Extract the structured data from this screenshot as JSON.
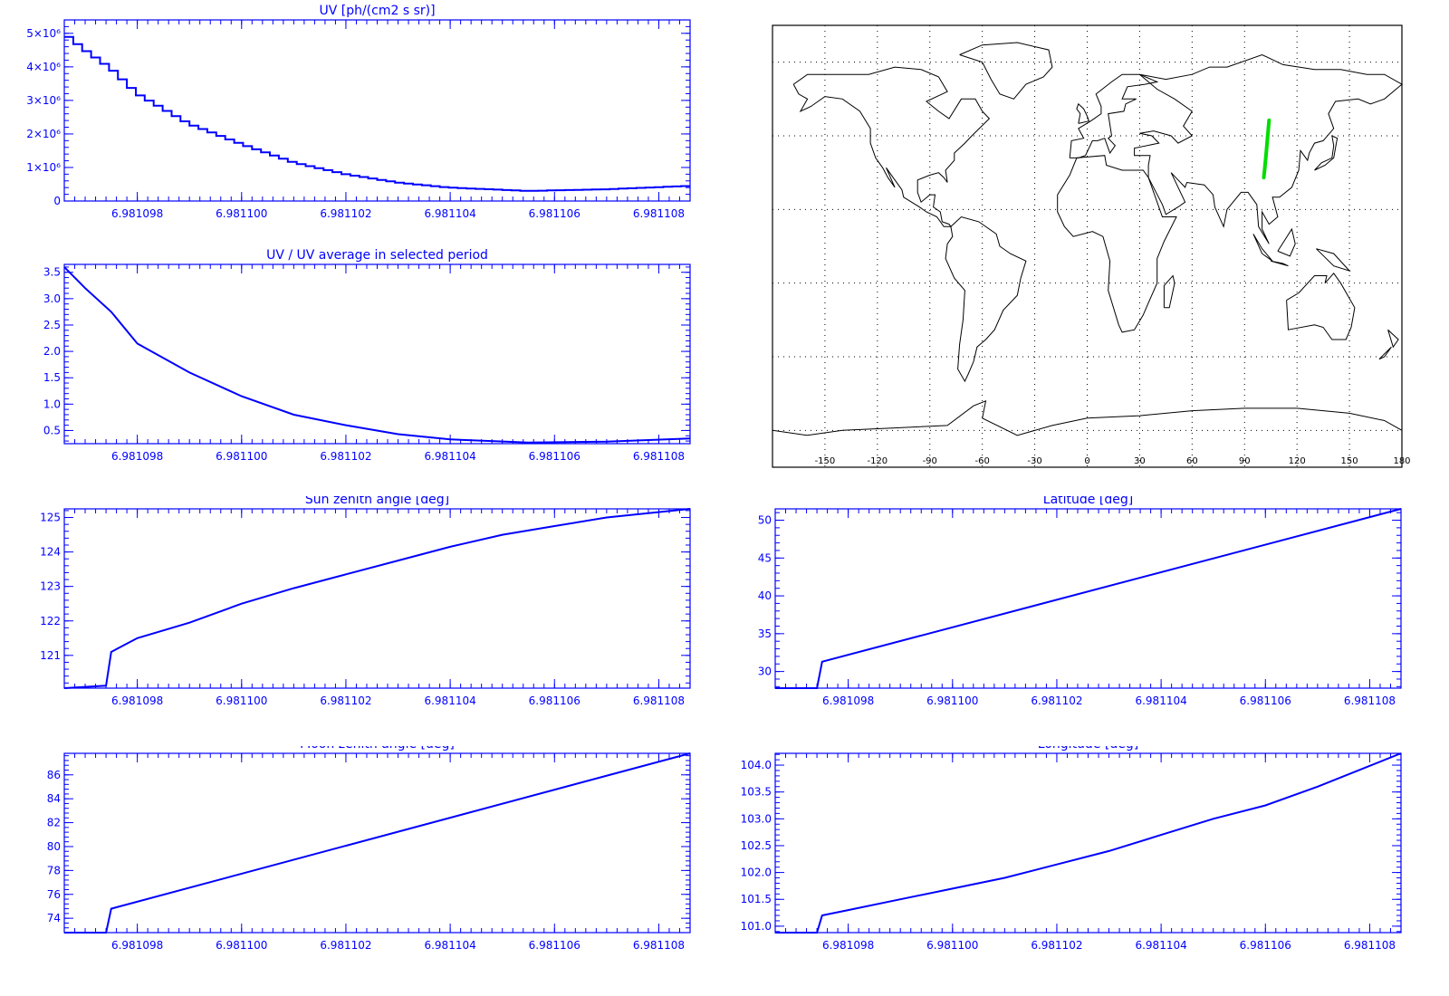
{
  "colors": {
    "axis": "#0000ff",
    "line": "#0000ff",
    "track": "#00dd00",
    "coast": "#000000",
    "grid": "#000000"
  },
  "x_tick_labels": [
    "6.981098",
    "6.981100",
    "6.981102",
    "6.981104",
    "6.981106",
    "6.981108"
  ],
  "chart_data": [
    {
      "id": "uv",
      "type": "line",
      "step": true,
      "title": "UV [ph/(cm2 s sr)]",
      "x_range": [
        6.9810966,
        6.9811086
      ],
      "x_ticks": [
        6.981098,
        6.9811,
        6.981102,
        6.981104,
        6.981106,
        6.981108
      ],
      "ylim": [
        0,
        5400000
      ],
      "y_ticks": [
        0,
        1000000,
        2000000,
        3000000,
        4000000,
        5000000
      ],
      "y_tick_labels": [
        "0",
        "1×10⁶",
        "2×10⁶",
        "3×10⁶",
        "4×10⁶",
        "5×10⁶"
      ],
      "x": [
        6.9810966,
        6.981097,
        6.9810975,
        6.981098,
        6.981099,
        6.9811,
        6.981101,
        6.981102,
        6.981103,
        6.981104,
        6.9811055,
        6.981107,
        6.9811086
      ],
      "y": [
        5000000,
        4500000,
        3950000,
        3200000,
        2300000,
        1700000,
        1150000,
        800000,
        550000,
        400000,
        300000,
        350000,
        450000
      ]
    },
    {
      "id": "ratio",
      "type": "line",
      "title": "UV / UV average in selected period",
      "x_range": [
        6.9810966,
        6.9811086
      ],
      "x_ticks": [
        6.981098,
        6.9811,
        6.981102,
        6.981104,
        6.981106,
        6.981108
      ],
      "ylim": [
        0.25,
        3.65
      ],
      "y_ticks": [
        0.5,
        1.0,
        1.5,
        2.0,
        2.5,
        3.0,
        3.5
      ],
      "y_tick_labels": [
        "0.5",
        "1.0",
        "1.5",
        "2.0",
        "2.5",
        "3.0",
        "3.5"
      ],
      "x": [
        6.9810966,
        6.981097,
        6.9810975,
        6.981098,
        6.981099,
        6.9811,
        6.981101,
        6.981102,
        6.981103,
        6.981104,
        6.9811055,
        6.981107,
        6.9811086
      ],
      "y": [
        3.6,
        3.2,
        2.75,
        2.15,
        1.6,
        1.15,
        0.8,
        0.6,
        0.43,
        0.33,
        0.27,
        0.29,
        0.35
      ]
    },
    {
      "id": "sun",
      "type": "line",
      "title": "Sun zenith angle [deg]",
      "x_range": [
        6.9810966,
        6.9811086
      ],
      "x_ticks": [
        6.981098,
        6.9811,
        6.981102,
        6.981104,
        6.981106,
        6.981108
      ],
      "ylim": [
        120.05,
        125.25
      ],
      "y_ticks": [
        121,
        122,
        123,
        124,
        125
      ],
      "y_tick_labels": [
        "121",
        "122",
        "123",
        "124",
        "125"
      ],
      "x": [
        6.9810966,
        6.9810974,
        6.9810975,
        6.981098,
        6.981099,
        6.9811,
        6.981101,
        6.981102,
        6.981103,
        6.981104,
        6.981105,
        6.981106,
        6.981107,
        6.9811086
      ],
      "y": [
        120.05,
        120.12,
        121.1,
        121.5,
        121.95,
        122.5,
        122.95,
        123.35,
        123.75,
        124.15,
        124.5,
        124.75,
        125.0,
        125.25
      ]
    },
    {
      "id": "lat",
      "type": "line",
      "title": "Latitude [deg]",
      "x_range": [
        6.9810966,
        6.9811086
      ],
      "x_ticks": [
        6.981098,
        6.9811,
        6.981102,
        6.981104,
        6.981106,
        6.981108
      ],
      "ylim": [
        27.8,
        51.5
      ],
      "y_ticks": [
        30,
        35,
        40,
        45,
        50
      ],
      "y_tick_labels": [
        "30",
        "35",
        "40",
        "45",
        "50"
      ],
      "x": [
        6.9810966,
        6.9810974,
        6.9810975,
        6.9811086
      ],
      "y": [
        27.8,
        27.8,
        31.3,
        51.5
      ]
    },
    {
      "id": "moon",
      "type": "line",
      "title": "Moon zenith angle [deg]",
      "x_range": [
        6.9810966,
        6.9811086
      ],
      "x_ticks": [
        6.981098,
        6.9811,
        6.981102,
        6.981104,
        6.981106,
        6.981108
      ],
      "ylim": [
        72.8,
        87.8
      ],
      "y_ticks": [
        74,
        76,
        78,
        80,
        82,
        84,
        86
      ],
      "y_tick_labels": [
        "74",
        "76",
        "78",
        "80",
        "82",
        "84",
        "86"
      ],
      "x": [
        6.9810966,
        6.9810974,
        6.9810975,
        6.9811086
      ],
      "y": [
        72.8,
        72.8,
        74.8,
        87.8
      ]
    },
    {
      "id": "lon",
      "type": "line",
      "title": "Longitude [deg]",
      "x_range": [
        6.9810966,
        6.9811086
      ],
      "x_ticks": [
        6.981098,
        6.9811,
        6.981102,
        6.981104,
        6.981106,
        6.981108
      ],
      "ylim": [
        100.88,
        104.22
      ],
      "y_ticks": [
        101.0,
        101.5,
        102.0,
        102.5,
        103.0,
        103.5,
        104.0
      ],
      "y_tick_labels": [
        "101.0",
        "101.5",
        "102.0",
        "102.5",
        "103.0",
        "103.5",
        "104.0"
      ],
      "x": [
        6.9810966,
        6.9810974,
        6.9810975,
        6.981098,
        6.981099,
        6.9811,
        6.981101,
        6.981102,
        6.981103,
        6.981104,
        6.981105,
        6.981106,
        6.981107,
        6.9811086
      ],
      "y": [
        100.88,
        100.88,
        101.2,
        101.3,
        101.5,
        101.7,
        101.9,
        102.15,
        102.4,
        102.7,
        103.0,
        103.25,
        103.6,
        104.22
      ]
    },
    {
      "id": "map",
      "type": "scatter",
      "title": "",
      "x_range": [
        -180,
        180
      ],
      "y_range": [
        -90,
        90
      ],
      "x_ticks": [
        -150,
        -120,
        -90,
        -60,
        -30,
        0,
        30,
        60,
        90,
        120,
        150,
        180
      ],
      "x_tick_labels": [
        "-150",
        "-120",
        "-90",
        "-60",
        "-30",
        "0",
        "30",
        "60",
        "90",
        "120",
        "150",
        "180"
      ],
      "grid": true,
      "track": {
        "lon": [
          101.0,
          101.5,
          102.0,
          102.5,
          103.0,
          103.5,
          104.0
        ],
        "lat": [
          28.0,
          31.5,
          35.0,
          39.0,
          43.0,
          47.0,
          51.3
        ]
      }
    }
  ]
}
